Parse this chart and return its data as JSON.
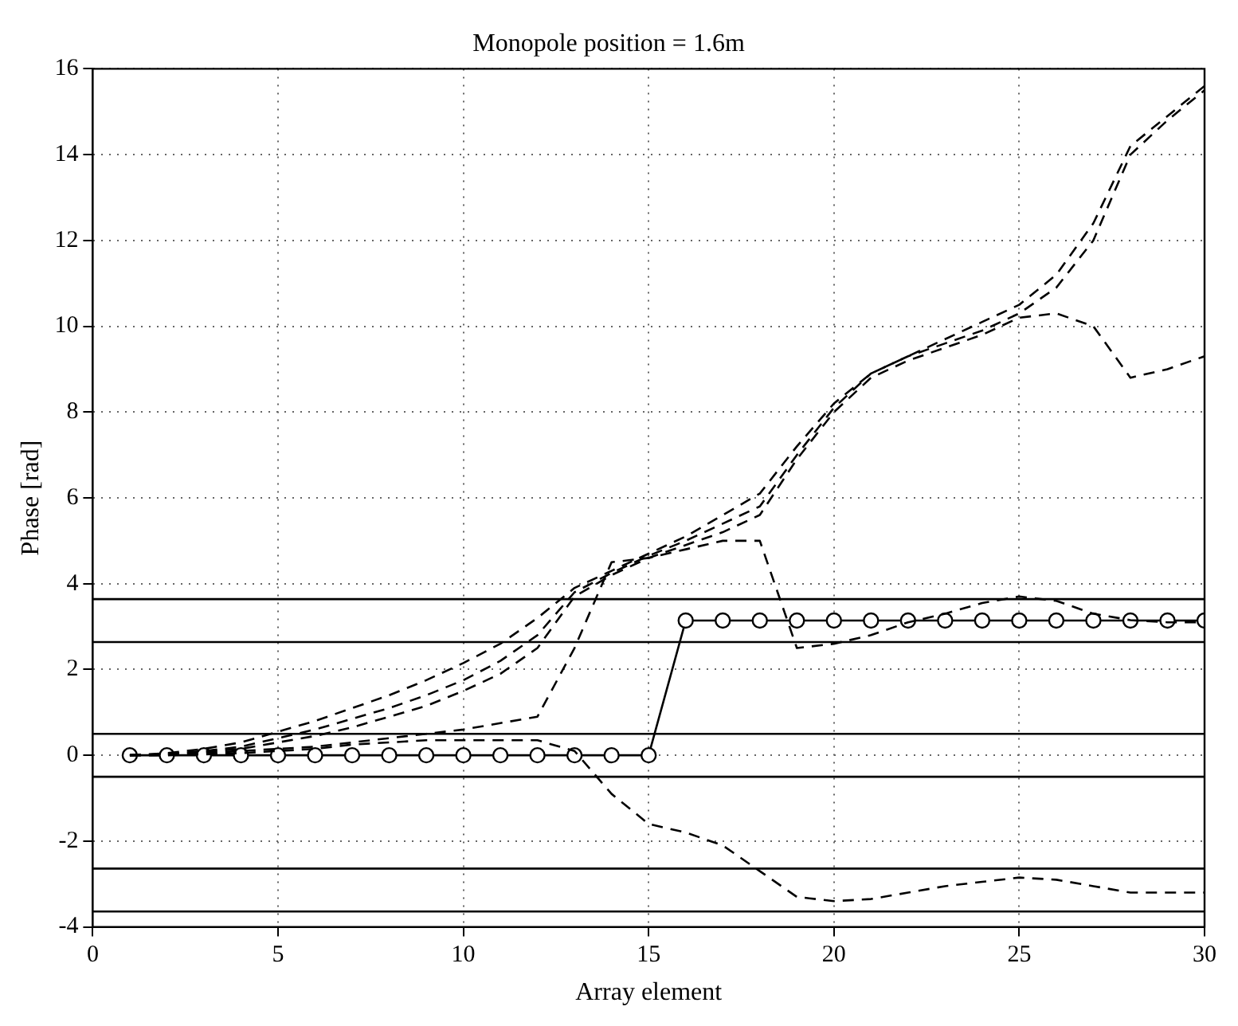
{
  "chart_data": {
    "type": "line",
    "title": "Monopole position = 1.6m",
    "xlabel": "Array element",
    "ylabel": "Phase [rad]",
    "x": [
      1,
      2,
      3,
      4,
      5,
      6,
      7,
      8,
      9,
      10,
      11,
      12,
      13,
      14,
      15,
      16,
      17,
      18,
      19,
      20,
      21,
      22,
      23,
      24,
      25,
      26,
      27,
      28,
      29,
      30
    ],
    "xlim": [
      0,
      30
    ],
    "xticks": [
      0,
      5,
      10,
      15,
      20,
      25,
      30
    ],
    "ylim": [
      -4,
      16
    ],
    "yticks": [
      -4,
      -2,
      0,
      2,
      4,
      6,
      8,
      10,
      12,
      14,
      16
    ],
    "grid": true,
    "legend": false,
    "series": [
      {
        "color": "#000000",
        "line_style": "dashed",
        "marker": "none",
        "values": [
          0,
          0.05,
          0.15,
          0.3,
          0.55,
          0.8,
          1.1,
          1.4,
          1.75,
          2.15,
          2.6,
          3.2,
          3.9,
          4.3,
          4.7,
          5.1,
          5.6,
          6.1,
          7.2,
          8.2,
          8.9,
          9.3,
          9.7,
          10.1,
          10.5,
          11.2,
          12.4,
          14.2,
          14.9,
          15.6
        ]
      },
      {
        "color": "#000000",
        "line_style": "dashed",
        "marker": "none",
        "values": [
          0,
          0.03,
          0.1,
          0.2,
          0.4,
          0.6,
          0.85,
          1.1,
          1.4,
          1.75,
          2.2,
          2.8,
          3.8,
          4.25,
          4.65,
          5.0,
          5.4,
          5.8,
          7.0,
          8.1,
          8.9,
          9.3,
          9.6,
          9.9,
          10.3,
          10.9,
          12.0,
          14.0,
          14.8,
          15.5
        ]
      },
      {
        "color": "#000000",
        "line_style": "dashed",
        "marker": "none",
        "values": [
          0,
          0.02,
          0.08,
          0.15,
          0.3,
          0.45,
          0.65,
          0.9,
          1.15,
          1.5,
          1.9,
          2.5,
          3.7,
          4.2,
          4.6,
          4.9,
          5.2,
          5.6,
          6.9,
          8.0,
          8.8,
          9.2,
          9.5,
          9.8,
          10.2,
          10.3,
          10.0,
          8.8,
          9.0,
          9.3
        ]
      },
      {
        "color": "#000000",
        "line_style": "dashed",
        "marker": "none",
        "values": [
          0,
          0.01,
          0.05,
          0.1,
          0.15,
          0.2,
          0.3,
          0.4,
          0.5,
          0.6,
          0.75,
          0.9,
          2.5,
          4.5,
          4.6,
          4.8,
          5.0,
          5.0,
          2.5,
          2.6,
          2.8,
          3.1,
          3.3,
          3.55,
          3.7,
          3.6,
          3.3,
          3.15,
          3.1,
          3.1
        ]
      },
      {
        "color": "#000000",
        "line_style": "dashed",
        "marker": "none",
        "values": [
          0,
          0,
          0.02,
          0.05,
          0.1,
          0.15,
          0.25,
          0.3,
          0.35,
          0.35,
          0.35,
          0.35,
          0.1,
          -0.9,
          -1.6,
          -1.8,
          -2.1,
          -2.7,
          -3.3,
          -3.4,
          -3.35,
          -3.2,
          -3.05,
          -2.95,
          -2.85,
          -2.9,
          -3.05,
          -3.2,
          -3.2,
          -3.2
        ]
      },
      {
        "color": "#000000",
        "line_style": "solid",
        "marker": "circle",
        "values": [
          0,
          0,
          0,
          0,
          0,
          0,
          0,
          0,
          0,
          0,
          0,
          0,
          0,
          0,
          0,
          3.14,
          3.14,
          3.14,
          3.14,
          3.14,
          3.14,
          3.14,
          3.14,
          3.14,
          3.14,
          3.14,
          3.14,
          3.14,
          3.14,
          3.14
        ]
      }
    ],
    "ref_lines": [
      {
        "axis": "y",
        "value": 3.64,
        "color": "#000000",
        "line_style": "solid"
      },
      {
        "axis": "y",
        "value": 2.64,
        "color": "#000000",
        "line_style": "solid"
      },
      {
        "axis": "y",
        "value": 0.5,
        "color": "#000000",
        "line_style": "solid"
      },
      {
        "axis": "y",
        "value": -0.5,
        "color": "#000000",
        "line_style": "solid"
      },
      {
        "axis": "y",
        "value": -2.64,
        "color": "#000000",
        "line_style": "solid"
      },
      {
        "axis": "y",
        "value": -3.64,
        "color": "#000000",
        "line_style": "solid"
      }
    ]
  }
}
